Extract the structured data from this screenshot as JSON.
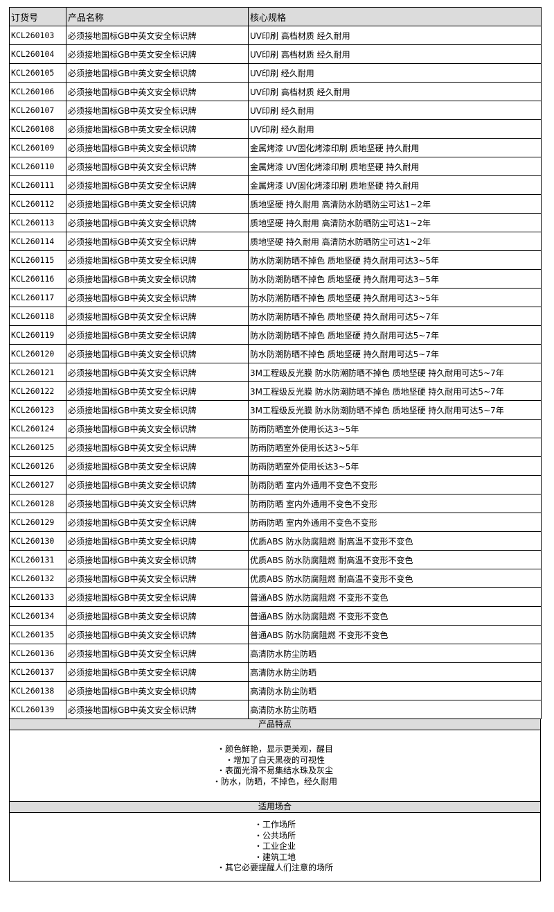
{
  "table": {
    "headers": [
      "订货号",
      "产品名称",
      "核心规格"
    ],
    "rows": [
      [
        "KCL260103",
        "必须接地国标GB中英文安全标识牌",
        "UV印刷 高档材质 经久耐用"
      ],
      [
        "KCL260104",
        "必须接地国标GB中英文安全标识牌",
        "UV印刷 高档材质 经久耐用"
      ],
      [
        "KCL260105",
        "必须接地国标GB中英文安全标识牌",
        "UV印刷 经久耐用"
      ],
      [
        "KCL260106",
        "必须接地国标GB中英文安全标识牌",
        "UV印刷 高档材质 经久耐用"
      ],
      [
        "KCL260107",
        "必须接地国标GB中英文安全标识牌",
        "UV印刷 经久耐用"
      ],
      [
        "KCL260108",
        "必须接地国标GB中英文安全标识牌",
        "UV印刷 经久耐用"
      ],
      [
        "KCL260109",
        "必须接地国标GB中英文安全标识牌",
        "金属烤漆 UV固化烤漆印刷 质地坚硬 持久耐用"
      ],
      [
        "KCL260110",
        "必须接地国标GB中英文安全标识牌",
        "金属烤漆 UV固化烤漆印刷 质地坚硬 持久耐用"
      ],
      [
        "KCL260111",
        "必须接地国标GB中英文安全标识牌",
        "金属烤漆 UV固化烤漆印刷 质地坚硬 持久耐用"
      ],
      [
        "KCL260112",
        "必须接地国标GB中英文安全标识牌",
        "质地坚硬 持久耐用 高清防水防晒防尘可达1~2年"
      ],
      [
        "KCL260113",
        "必须接地国标GB中英文安全标识牌",
        "质地坚硬 持久耐用 高清防水防晒防尘可达1~2年"
      ],
      [
        "KCL260114",
        "必须接地国标GB中英文安全标识牌",
        "质地坚硬 持久耐用 高清防水防晒防尘可达1~2年"
      ],
      [
        "KCL260115",
        "必须接地国标GB中英文安全标识牌",
        "防水防潮防晒不掉色 质地坚硬 持久耐用可达3~5年"
      ],
      [
        "KCL260116",
        "必须接地国标GB中英文安全标识牌",
        "防水防潮防晒不掉色 质地坚硬 持久耐用可达3~5年"
      ],
      [
        "KCL260117",
        "必须接地国标GB中英文安全标识牌",
        "防水防潮防晒不掉色 质地坚硬 持久耐用可达3~5年"
      ],
      [
        "KCL260118",
        "必须接地国标GB中英文安全标识牌",
        "防水防潮防晒不掉色 质地坚硬 持久耐用可达5~7年"
      ],
      [
        "KCL260119",
        "必须接地国标GB中英文安全标识牌",
        "防水防潮防晒不掉色 质地坚硬 持久耐用可达5~7年"
      ],
      [
        "KCL260120",
        "必须接地国标GB中英文安全标识牌",
        "防水防潮防晒不掉色 质地坚硬 持久耐用可达5~7年"
      ],
      [
        "KCL260121",
        "必须接地国标GB中英文安全标识牌",
        "3M工程级反光膜 防水防潮防晒不掉色 质地坚硬 持久耐用可达5~7年"
      ],
      [
        "KCL260122",
        "必须接地国标GB中英文安全标识牌",
        "3M工程级反光膜 防水防潮防晒不掉色 质地坚硬 持久耐用可达5~7年"
      ],
      [
        "KCL260123",
        "必须接地国标GB中英文安全标识牌",
        "3M工程级反光膜 防水防潮防晒不掉色 质地坚硬 持久耐用可达5~7年"
      ],
      [
        "KCL260124",
        "必须接地国标GB中英文安全标识牌",
        "防雨防晒室外使用长达3~5年"
      ],
      [
        "KCL260125",
        "必须接地国标GB中英文安全标识牌",
        "防雨防晒室外使用长达3~5年"
      ],
      [
        "KCL260126",
        "必须接地国标GB中英文安全标识牌",
        "防雨防晒室外使用长达3~5年"
      ],
      [
        "KCL260127",
        "必须接地国标GB中英文安全标识牌",
        "防雨防晒 室内外通用不变色不变形"
      ],
      [
        "KCL260128",
        "必须接地国标GB中英文安全标识牌",
        "防雨防晒 室内外通用不变色不变形"
      ],
      [
        "KCL260129",
        "必须接地国标GB中英文安全标识牌",
        "防雨防晒 室内外通用不变色不变形"
      ],
      [
        "KCL260130",
        "必须接地国标GB中英文安全标识牌",
        "优质ABS 防水防腐阻燃 耐高温不变形不变色"
      ],
      [
        "KCL260131",
        "必须接地国标GB中英文安全标识牌",
        "优质ABS 防水防腐阻燃 耐高温不变形不变色"
      ],
      [
        "KCL260132",
        "必须接地国标GB中英文安全标识牌",
        "优质ABS 防水防腐阻燃 耐高温不变形不变色"
      ],
      [
        "KCL260133",
        "必须接地国标GB中英文安全标识牌",
        "普通ABS 防水防腐阻燃 不变形不变色"
      ],
      [
        "KCL260134",
        "必须接地国标GB中英文安全标识牌",
        "普通ABS 防水防腐阻燃 不变形不变色"
      ],
      [
        "KCL260135",
        "必须接地国标GB中英文安全标识牌",
        "普通ABS 防水防腐阻燃 不变形不变色"
      ],
      [
        "KCL260136",
        "必须接地国标GB中英文安全标识牌",
        "高清防水防尘防晒"
      ],
      [
        "KCL260137",
        "必须接地国标GB中英文安全标识牌",
        "高清防水防尘防晒"
      ],
      [
        "KCL260138",
        "必须接地国标GB中英文安全标识牌",
        "高清防水防尘防晒"
      ],
      [
        "KCL260139",
        "必须接地国标GB中英文安全标识牌",
        "高清防水防尘防晒"
      ]
    ]
  },
  "features": {
    "title": "产品特点",
    "items": [
      "・颜色鲜艳，显示更美观，醒目",
      "・增加了白天黑夜的可视性",
      "・表面光滑不易集结水珠及灰尘",
      "・防水，防晒，不掉色，经久耐用"
    ]
  },
  "scenes": {
    "title": "适用场合",
    "items": [
      "・工作场所",
      "・公共场所",
      "・工业企业",
      "・建筑工地",
      "・其它必要提醒人们注意的场所"
    ]
  },
  "colors": {
    "header_bg": "#dcdcdc",
    "border": "#000000"
  }
}
